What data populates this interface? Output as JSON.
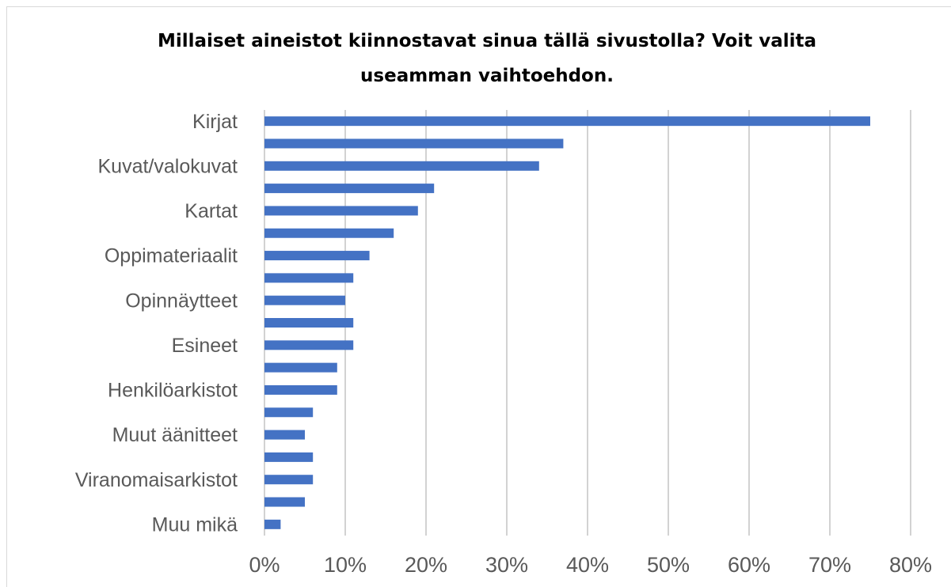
{
  "chart_data": {
    "type": "bar",
    "orientation": "horizontal",
    "title": "Millaiset aineistot kiinnostavat sinua tällä sivustolla? Voit valita useamman vaihtoehdon.",
    "categories": [
      "Kirjat",
      null,
      "Kuvat/valokuvat",
      null,
      "Kartat",
      null,
      "Oppimateriaalit",
      null,
      "Opinnäytteet",
      null,
      "Esineet",
      null,
      "Henkilöarkistot",
      null,
      "Muut äänitteet",
      null,
      "Viranomaisarkistot",
      null,
      "Muu mikä"
    ],
    "values": [
      75,
      37,
      34,
      21,
      19,
      16,
      13,
      11,
      10,
      11,
      11,
      9,
      9,
      6,
      5,
      6,
      6,
      5,
      2
    ],
    "color": "#4472c4",
    "xlim": [
      0,
      80
    ],
    "xticks": [
      {
        "value": 0,
        "label": "0%"
      },
      {
        "value": 10,
        "label": "10%"
      },
      {
        "value": 20,
        "label": "20%"
      },
      {
        "value": 30,
        "label": "30%"
      },
      {
        "value": 40,
        "label": "40%"
      },
      {
        "value": 50,
        "label": "50%"
      },
      {
        "value": 60,
        "label": "60%"
      },
      {
        "value": 70,
        "label": "70%"
      },
      {
        "value": 80,
        "label": "80%"
      }
    ],
    "grid": true
  }
}
